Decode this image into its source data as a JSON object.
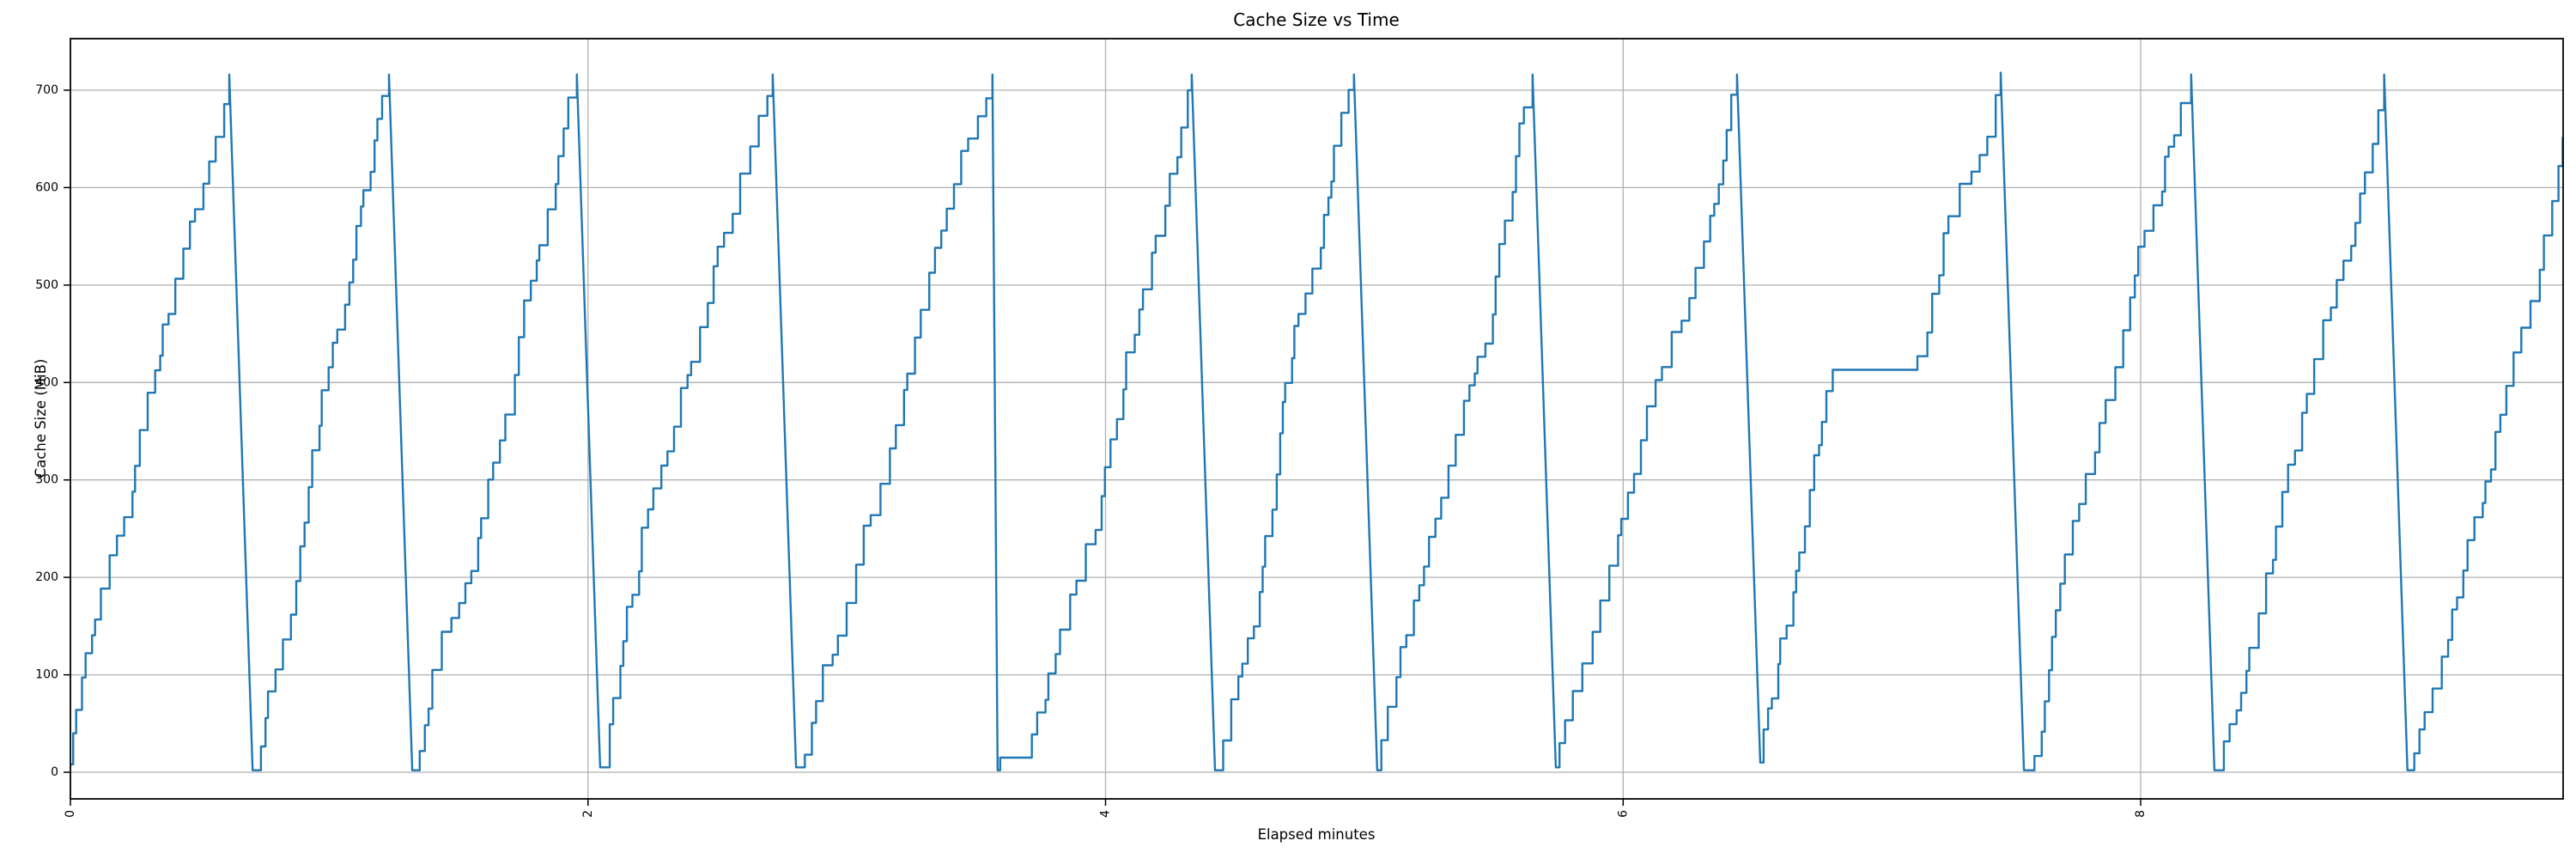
{
  "page": {
    "background_color": "#ffffff"
  },
  "chart_data": {
    "type": "line",
    "title": "Cache Size vs Time",
    "xlabel": "Elapsed minutes",
    "ylabel": "Cache Size (MiB)",
    "x_tick_labels": [
      "0",
      "2",
      "4",
      "6",
      "8"
    ],
    "x_ticks": [
      0,
      2,
      4,
      6,
      8
    ],
    "y_tick_labels": [
      "0",
      "100",
      "200",
      "300",
      "400",
      "500",
      "600",
      "700"
    ],
    "y_ticks": [
      0,
      100,
      200,
      300,
      400,
      500,
      600,
      700
    ],
    "x_range_minutes": [
      0,
      9.63
    ],
    "y_range_mib": [
      -28,
      753
    ],
    "grid": true,
    "legend_position": "none",
    "line_color": "#1f77b4",
    "grid_color": "#b0b0b0",
    "axis_color": "#000000",
    "x_tick_label_rotation_deg": 90,
    "peak_mib": 716,
    "trough_mib": 2,
    "pattern": "Stepped sawtooth: cache grows in uneven increments to ~716 MiB, then is flushed almost instantly to ~0; 12 full fill/flush cycles plus a final partial fill clipped at the right edge",
    "anomalies": [
      {
        "description": "low plateau after 5th flush",
        "value_mib": 15,
        "from_min": 3.59,
        "to_min": 3.7
      },
      {
        "description": "mid-rise plateau during 10th fill",
        "value_mib": 413,
        "from_min": 6.81,
        "to_min": 7.11
      }
    ],
    "teeth": [
      {
        "start": 0.0,
        "start_value": 8,
        "peak_time": 0.614,
        "peak_value": 716
      },
      {
        "start": 0.704,
        "start_value": 2,
        "peak_time": 1.231,
        "peak_value": 716
      },
      {
        "start": 1.321,
        "start_value": 2,
        "peak_time": 1.957,
        "peak_value": 716
      },
      {
        "start": 2.047,
        "start_value": 5,
        "peak_time": 2.714,
        "peak_value": 716
      },
      {
        "start": 2.804,
        "start_value": 5,
        "peak_time": 3.563,
        "peak_value": 716
      },
      {
        "start": 3.583,
        "start_value": 2,
        "peak_time": 4.333,
        "peak_value": 716,
        "plateaus": [
          {
            "value": 15,
            "from": 3.593,
            "to": 3.7
          }
        ]
      },
      {
        "start": 4.423,
        "start_value": 2,
        "peak_time": 4.96,
        "peak_value": 716
      },
      {
        "start": 5.05,
        "start_value": 2,
        "peak_time": 5.65,
        "peak_value": 716
      },
      {
        "start": 5.74,
        "start_value": 5,
        "peak_time": 6.44,
        "peak_value": 716
      },
      {
        "start": 6.53,
        "start_value": 10,
        "peak_time": 7.459,
        "peak_value": 718,
        "plateaus": [
          {
            "value": 413,
            "from": 6.81,
            "to": 7.11
          }
        ]
      },
      {
        "start": 7.549,
        "start_value": 2,
        "peak_time": 8.195,
        "peak_value": 716
      },
      {
        "start": 8.285,
        "start_value": 2,
        "peak_time": 8.941,
        "peak_value": 716
      },
      {
        "start": 9.031,
        "start_value": 2,
        "end_time": 9.631,
        "end_value": 652,
        "clipped": true
      }
    ]
  }
}
